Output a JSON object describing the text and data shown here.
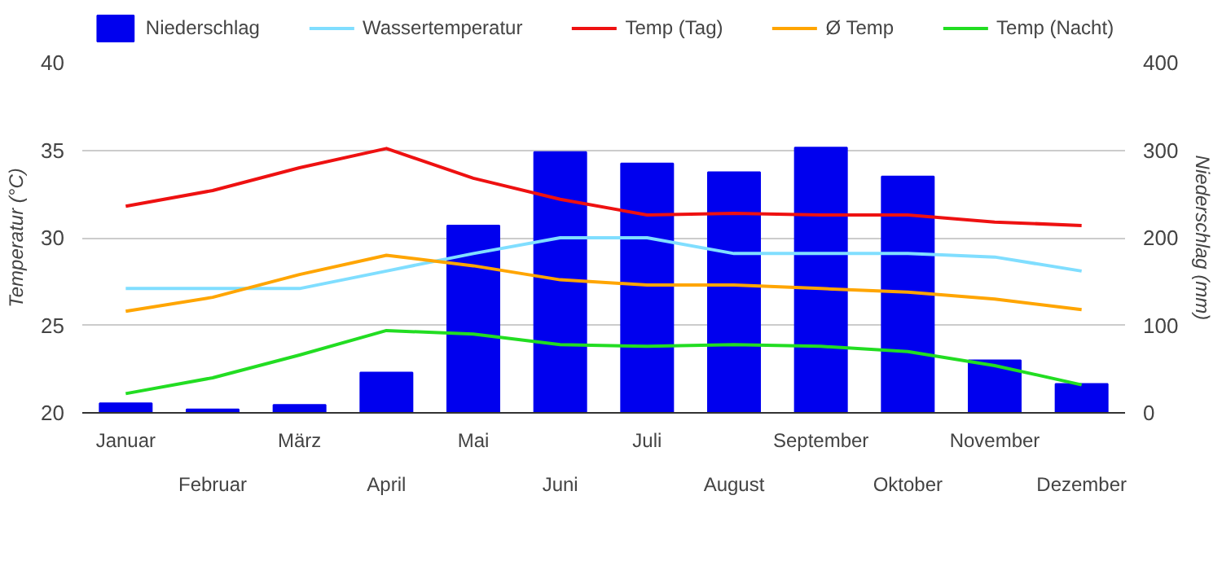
{
  "chart_data": {
    "type": "line",
    "categories": [
      "Januar",
      "Februar",
      "März",
      "April",
      "Mai",
      "Juni",
      "Juli",
      "August",
      "September",
      "Oktober",
      "November",
      "Dezember"
    ],
    "ylabel": "Temperatur (°C)",
    "y2label": "Niederschlag (mm)",
    "ylim": [
      20,
      40
    ],
    "yticks": [
      20,
      25,
      30,
      35,
      40
    ],
    "y2lim": [
      0,
      400
    ],
    "y2ticks": [
      0,
      100,
      200,
      300,
      400
    ],
    "grid": "y",
    "legend": "top",
    "marker": "none",
    "line_style": "solid",
    "series": [
      {
        "name": "Niederschlag",
        "type": "bar",
        "axis": "y2",
        "color": "#0000ee",
        "values": [
          11,
          4,
          9,
          46,
          214,
          298,
          285,
          275,
          303,
          270,
          60,
          33
        ]
      },
      {
        "name": "Wassertemperatur",
        "color": "#80deff",
        "values": [
          27.1,
          27.1,
          27.1,
          28.1,
          29.1,
          30,
          30,
          29.1,
          29.1,
          29.1,
          28.9,
          28.1
        ]
      },
      {
        "name": "Temp (Tag)",
        "color": "#ee1111",
        "values": [
          31.8,
          32.7,
          34,
          35.1,
          33.4,
          32.2,
          31.3,
          31.4,
          31.3,
          31.3,
          30.9,
          30.7
        ]
      },
      {
        "name": "Ø Temp",
        "color": "#ffa500",
        "values": [
          25.8,
          26.6,
          27.9,
          29,
          28.4,
          27.6,
          27.3,
          27.3,
          27.1,
          26.9,
          26.5,
          25.9
        ]
      },
      {
        "name": "Temp (Nacht)",
        "color": "#22dd22",
        "values": [
          21.1,
          22,
          23.3,
          24.7,
          24.5,
          23.9,
          23.8,
          23.9,
          23.8,
          23.5,
          22.7,
          21.6
        ]
      }
    ]
  }
}
